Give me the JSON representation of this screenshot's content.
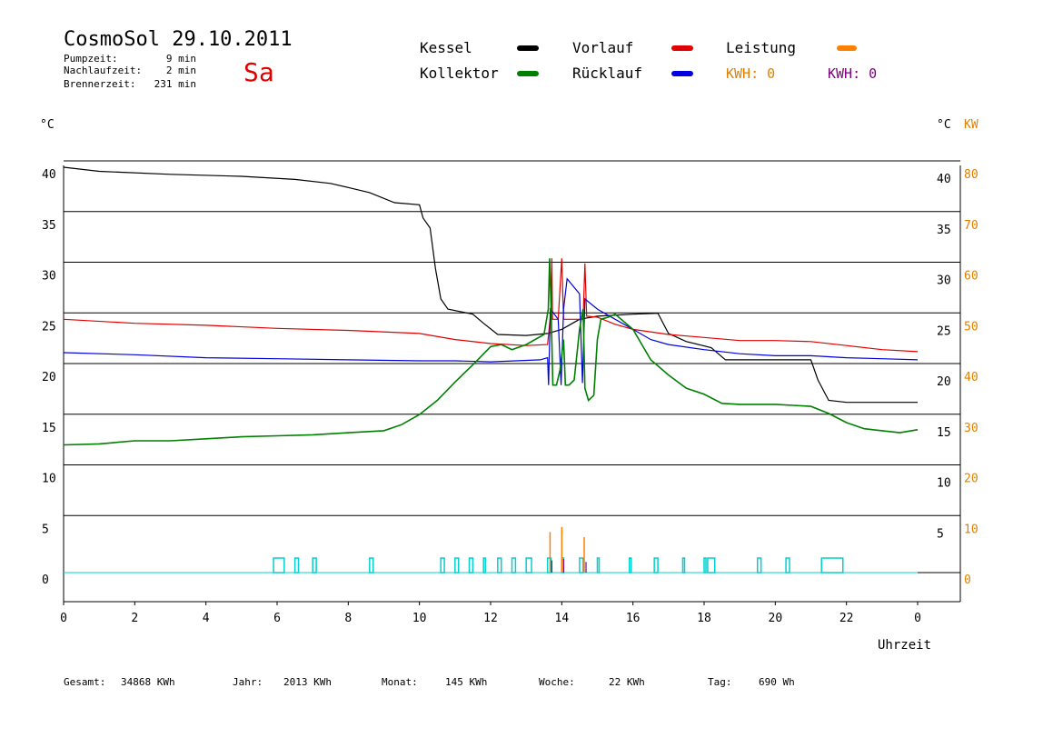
{
  "header": {
    "title": "CosmoSol 29.10.2011",
    "day": "Sa",
    "stats": [
      {
        "label": "Pumpzeit:",
        "value": "9 min"
      },
      {
        "label": "Nachlaufzeit:",
        "value": "2 min"
      },
      {
        "label": "Brennerzeit:",
        "value": "231 min"
      }
    ]
  },
  "legend": {
    "items": [
      {
        "label": "Kessel",
        "color": "#000000"
      },
      {
        "label": "Kollektor",
        "color": "#008000"
      },
      {
        "label": "Vorlauf",
        "color": "#e00000"
      },
      {
        "label": "Rücklauf",
        "color": "#0000e0"
      },
      {
        "label": "Leistung",
        "color": "#ff8000"
      }
    ],
    "kwh": [
      {
        "label": "KWH: 0",
        "color": "#e08000"
      },
      {
        "label": "KWH: 0",
        "color": "#800080"
      }
    ]
  },
  "footer": [
    {
      "label": "Gesamt:",
      "value": "34868 KWh"
    },
    {
      "label": "Jahr:",
      "value": "2013 KWh"
    },
    {
      "label": "Monat:",
      "value": "145 KWh"
    },
    {
      "label": "Woche:",
      "value": "22 KWh"
    },
    {
      "label": "Tag:",
      "value": "690 Wh"
    }
  ],
  "chart_data": {
    "type": "line",
    "xlabel": "Uhrzeit",
    "ylabel_left": "°C",
    "ylabel_right": "°C",
    "ylabel_right2": "KW",
    "xlim": [
      0,
      24
    ],
    "ylim": [
      0,
      40
    ],
    "x_ticks": [
      "0",
      "2",
      "4",
      "6",
      "8",
      "10",
      "12",
      "14",
      "16",
      "18",
      "20",
      "22",
      "0"
    ],
    "y_ticks_left": [
      0,
      5,
      10,
      15,
      20,
      25,
      30,
      35,
      40
    ],
    "y_ticks_right": [
      5,
      10,
      15,
      20,
      25,
      30,
      35,
      40
    ],
    "y_ticks_kw": [
      0,
      10,
      20,
      30,
      40,
      50,
      60,
      70,
      80
    ],
    "grid": true,
    "series": [
      {
        "name": "Kessel",
        "color": "#000000",
        "points": [
          [
            0,
            40
          ],
          [
            1,
            39.6
          ],
          [
            3,
            39.3
          ],
          [
            5,
            39.1
          ],
          [
            6.5,
            38.8
          ],
          [
            7.5,
            38.4
          ],
          [
            8,
            38
          ],
          [
            8.6,
            37.5
          ],
          [
            9.3,
            36.5
          ],
          [
            10,
            36.3
          ],
          [
            10.1,
            35
          ],
          [
            10.3,
            34
          ],
          [
            10.45,
            30
          ],
          [
            10.6,
            27
          ],
          [
            10.8,
            26
          ],
          [
            11.5,
            25.5
          ],
          [
            11.8,
            24.6
          ],
          [
            12.2,
            23.5
          ],
          [
            13,
            23.4
          ],
          [
            13.6,
            23.6
          ],
          [
            14,
            24
          ],
          [
            14.5,
            25
          ],
          [
            15,
            25.3
          ],
          [
            16,
            25.5
          ],
          [
            16.7,
            25.6
          ],
          [
            17,
            23.6
          ],
          [
            17.5,
            22.8
          ],
          [
            18.2,
            22.2
          ],
          [
            18.6,
            21
          ],
          [
            20,
            21
          ],
          [
            21,
            21
          ],
          [
            21.2,
            19
          ],
          [
            21.5,
            17
          ],
          [
            22,
            16.8
          ],
          [
            24,
            16.8
          ]
        ]
      },
      {
        "name": "Vorlauf",
        "color": "#e00000",
        "points": [
          [
            0,
            25
          ],
          [
            2,
            24.6
          ],
          [
            4,
            24.4
          ],
          [
            6,
            24.1
          ],
          [
            8,
            23.9
          ],
          [
            10,
            23.6
          ],
          [
            11,
            23
          ],
          [
            12,
            22.6
          ],
          [
            13,
            22.4
          ],
          [
            13.6,
            22.5
          ],
          [
            13.7,
            26
          ],
          [
            13.72,
            31
          ],
          [
            13.74,
            25
          ],
          [
            13.9,
            25
          ],
          [
            14.0,
            31
          ],
          [
            14.05,
            25
          ],
          [
            14.6,
            25
          ],
          [
            14.65,
            30.5
          ],
          [
            14.7,
            25.3
          ],
          [
            15,
            25.2
          ],
          [
            15.5,
            24.5
          ],
          [
            16,
            24
          ],
          [
            17,
            23.5
          ],
          [
            18,
            23.2
          ],
          [
            19,
            22.9
          ],
          [
            20,
            22.9
          ],
          [
            21,
            22.8
          ],
          [
            22,
            22.4
          ],
          [
            23,
            22
          ],
          [
            24,
            21.8
          ]
        ]
      },
      {
        "name": "Rücklauf",
        "color": "#0000e0",
        "points": [
          [
            0,
            21.7
          ],
          [
            2,
            21.5
          ],
          [
            4,
            21.2
          ],
          [
            6,
            21.1
          ],
          [
            8,
            21
          ],
          [
            10,
            20.9
          ],
          [
            11,
            20.9
          ],
          [
            12,
            20.8
          ],
          [
            13.4,
            21
          ],
          [
            13.6,
            21.2
          ],
          [
            13.63,
            18.5
          ],
          [
            13.68,
            26
          ],
          [
            13.9,
            25
          ],
          [
            13.98,
            18.5
          ],
          [
            14.05,
            26
          ],
          [
            14.15,
            29
          ],
          [
            14.5,
            27.5
          ],
          [
            14.58,
            18.7
          ],
          [
            14.65,
            27
          ],
          [
            15,
            26
          ],
          [
            15.5,
            25
          ],
          [
            16,
            24
          ],
          [
            16.5,
            23
          ],
          [
            17,
            22.5
          ],
          [
            18,
            22
          ],
          [
            19,
            21.6
          ],
          [
            20,
            21.4
          ],
          [
            21,
            21.4
          ],
          [
            22,
            21.2
          ],
          [
            23,
            21.1
          ],
          [
            24,
            21
          ]
        ]
      },
      {
        "name": "Kollektor",
        "color": "#008000",
        "points": [
          [
            0,
            12.6
          ],
          [
            1,
            12.7
          ],
          [
            2,
            13
          ],
          [
            3,
            13
          ],
          [
            4,
            13.2
          ],
          [
            5,
            13.4
          ],
          [
            6,
            13.5
          ],
          [
            7,
            13.6
          ],
          [
            8,
            13.8
          ],
          [
            9,
            14
          ],
          [
            9.5,
            14.6
          ],
          [
            10,
            15.6
          ],
          [
            10.5,
            17
          ],
          [
            11,
            18.8
          ],
          [
            11.5,
            20.5
          ],
          [
            12,
            22.3
          ],
          [
            12.3,
            22.5
          ],
          [
            12.6,
            22
          ],
          [
            13,
            22.5
          ],
          [
            13.5,
            23.5
          ],
          [
            13.62,
            26
          ],
          [
            13.66,
            31
          ],
          [
            13.7,
            26
          ],
          [
            13.75,
            18.5
          ],
          [
            13.85,
            18.5
          ],
          [
            13.95,
            20
          ],
          [
            14.05,
            23
          ],
          [
            14.1,
            18.5
          ],
          [
            14.2,
            18.5
          ],
          [
            14.35,
            19
          ],
          [
            14.5,
            24
          ],
          [
            14.6,
            26
          ],
          [
            14.65,
            18.2
          ],
          [
            14.75,
            17
          ],
          [
            14.9,
            17.5
          ],
          [
            15.0,
            23
          ],
          [
            15.1,
            25
          ],
          [
            15.3,
            25.2
          ],
          [
            15.5,
            25.5
          ],
          [
            16,
            24
          ],
          [
            16.5,
            21
          ],
          [
            17,
            19.5
          ],
          [
            17.5,
            18.2
          ],
          [
            18,
            17.6
          ],
          [
            18.5,
            16.7
          ],
          [
            19,
            16.6
          ],
          [
            20,
            16.6
          ],
          [
            20.5,
            16.5
          ],
          [
            21,
            16.4
          ],
          [
            21.5,
            15.7
          ],
          [
            22,
            14.8
          ],
          [
            22.5,
            14.2
          ],
          [
            23,
            14.0
          ],
          [
            23.5,
            13.8
          ],
          [
            24,
            14.1
          ]
        ]
      }
    ],
    "pump_pulses": [
      [
        5.9,
        6.2
      ],
      [
        6.5,
        6.6
      ],
      [
        7.0,
        7.1
      ],
      [
        8.6,
        8.7
      ],
      [
        10.6,
        10.7
      ],
      [
        11.0,
        11.1
      ],
      [
        11.4,
        11.5
      ],
      [
        11.8,
        11.85
      ],
      [
        12.2,
        12.3
      ],
      [
        12.6,
        12.7
      ],
      [
        13.0,
        13.15
      ],
      [
        13.6,
        13.7
      ],
      [
        14.0,
        14.05
      ],
      [
        14.5,
        14.6
      ],
      [
        15.0,
        15.05
      ],
      [
        15.9,
        15.95
      ],
      [
        16.6,
        16.7
      ],
      [
        17.4,
        17.45
      ],
      [
        18.0,
        18.05
      ],
      [
        18.1,
        18.3
      ],
      [
        19.5,
        19.6
      ],
      [
        20.3,
        20.4
      ],
      [
        21.3,
        21.9
      ]
    ],
    "power_spikes": [
      [
        13.67,
        4.0
      ],
      [
        14.0,
        4.5
      ],
      [
        14.63,
        3.5
      ]
    ]
  }
}
